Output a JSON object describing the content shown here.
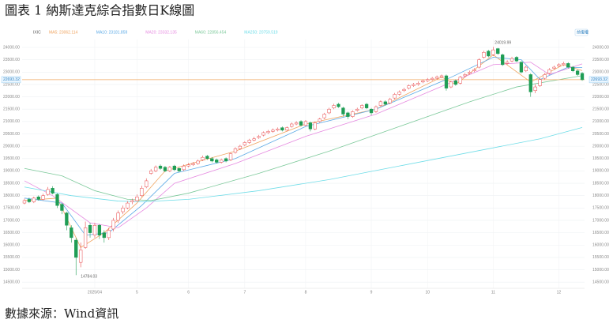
{
  "header": {
    "title": "圖表 1 納斯達克綜合指數日K線圖"
  },
  "footer": {
    "source": "數據來源：Wind資訊"
  },
  "chart_data": {
    "type": "candlestick",
    "symbol": "IXIC",
    "button_label": "前復權",
    "ylim": [
      14250,
      24320
    ],
    "yticks": [
      {
        "value": 14500,
        "label": "14500.00"
      },
      {
        "value": 15000,
        "label": "15000.00"
      },
      {
        "value": 15500,
        "label": "15500.00"
      },
      {
        "value": 16000,
        "label": "16000.00"
      },
      {
        "value": 16500,
        "label": "16500.00"
      },
      {
        "value": 17000,
        "label": "17000.00"
      },
      {
        "value": 17500,
        "label": "17500.00"
      },
      {
        "value": 18000,
        "label": "18000.00"
      },
      {
        "value": 18500,
        "label": "18500.00"
      },
      {
        "value": 19000,
        "label": "19000.00"
      },
      {
        "value": 19500,
        "label": "19500.00"
      },
      {
        "value": 20000,
        "label": "20000.00"
      },
      {
        "value": 20500,
        "label": "20500.00"
      },
      {
        "value": 21000,
        "label": "21000.00"
      },
      {
        "value": 21500,
        "label": "21500.00"
      },
      {
        "value": 22000,
        "label": "22000.00"
      },
      {
        "value": 22500,
        "label": "22500.00"
      },
      {
        "value": 23000,
        "label": "23000.00"
      },
      {
        "value": 23500,
        "label": "23500.00"
      },
      {
        "value": 24000,
        "label": "24000.00"
      }
    ],
    "xlim": [
      -0.5,
      119.5
    ],
    "xticks": [
      {
        "value": 15,
        "label": "2025/04"
      },
      {
        "value": 24,
        "label": "5"
      },
      {
        "value": 35,
        "label": "6"
      },
      {
        "value": 47,
        "label": "7"
      },
      {
        "value": 60,
        "label": "8"
      },
      {
        "value": 74,
        "label": "9"
      },
      {
        "value": 86,
        "label": "10"
      },
      {
        "value": 100,
        "label": "11"
      },
      {
        "value": 114,
        "label": "12"
      }
    ],
    "grid": true,
    "up_color": "#e8484a",
    "down_color": "#1f9d55",
    "last_price": {
      "value": 22693.32,
      "label": "22693.32"
    },
    "last_price_color": "#f0a860",
    "annotations": [
      {
        "text": "24019.99"
      },
      {
        "text": "14784.03"
      }
    ],
    "open": [
      17700,
      17850,
      17750,
      17950,
      17850,
      18050,
      18300,
      18050,
      17650,
      17300,
      16700,
      16200,
      15300,
      15900,
      16800,
      16400,
      16800,
      16500,
      16300,
      16650,
      17000,
      17350,
      17500,
      17750,
      17800,
      18000,
      18350,
      18900,
      19000,
      19200,
      19150,
      19000,
      19200,
      19100,
      19050,
      19200,
      19250,
      19300,
      19450,
      19600,
      19500,
      19450,
      19350,
      19500,
      19450,
      19750,
      19900,
      20050,
      20150,
      20250,
      20350,
      20450,
      20550,
      20600,
      20650,
      20750,
      20650,
      20800,
      20900,
      21000,
      20850,
      20950,
      20700,
      21000,
      21150,
      21350,
      21550,
      21700,
      21550,
      21350,
      21200,
      21450,
      21550,
      21700,
      21500,
      21400,
      21650,
      21800,
      21750,
      21950,
      22100,
      22250,
      22350,
      22450,
      22500,
      22600,
      22650,
      22700,
      22750,
      22800,
      22850,
      22400,
      22650,
      22550,
      22850,
      22950,
      23050,
      23200,
      23600,
      23850,
      23700,
      23950,
      23700,
      23350,
      23450,
      23600,
      23400,
      23050,
      22900,
      22250,
      22450,
      22750,
      22950,
      23150,
      23250,
      23300,
      23350,
      23200,
      23050,
      22950
    ],
    "high": [
      17880,
      17920,
      17960,
      18010,
      18080,
      18350,
      18380,
      18100,
      17700,
      17350,
      16800,
      16300,
      16100,
      16950,
      16900,
      16900,
      16850,
      16600,
      16700,
      17100,
      17400,
      17600,
      17780,
      17880,
      18050,
      18400,
      18700,
      19080,
      19220,
      19260,
      19200,
      19200,
      19250,
      19150,
      19260,
      19320,
      19360,
      19460,
      19620,
      19650,
      19560,
      19500,
      19500,
      19550,
      19750,
      19960,
      20060,
      20200,
      20300,
      20380,
      20460,
      20600,
      20660,
      20720,
      20760,
      20800,
      20800,
      20960,
      21020,
      21050,
      21060,
      21000,
      21000,
      21150,
      21350,
      21560,
      21720,
      21760,
      21600,
      21400,
      21450,
      21560,
      21700,
      21750,
      21550,
      21650,
      21860,
      21860,
      21960,
      22160,
      22260,
      22360,
      22500,
      22560,
      22620,
      22700,
      22760,
      22800,
      22860,
      22900,
      22900,
      22650,
      22700,
      22850,
      22960,
      23060,
      23160,
      23560,
      23860,
      23900,
      24019.99,
      23980,
      23750,
      23480,
      23620,
      23650,
      23450,
      23260,
      22950,
      22500,
      22760,
      22960,
      23160,
      23260,
      23360,
      23420,
      23400,
      23250,
      23100,
      23000
    ],
    "low": [
      17650,
      17700,
      17700,
      17800,
      17810,
      18000,
      18050,
      17500,
      17250,
      16600,
      16100,
      14784.03,
      15100,
      15850,
      16300,
      16300,
      16250,
      16100,
      16200,
      16550,
      16900,
      17250,
      17450,
      17650,
      17750,
      17950,
      18300,
      18850,
      18950,
      19050,
      18950,
      18950,
      19000,
      18950,
      19000,
      19150,
      19200,
      19250,
      19400,
      19450,
      19350,
      19300,
      19300,
      19350,
      19400,
      19700,
      19850,
      20000,
      20100,
      20200,
      20300,
      20400,
      20500,
      20550,
      20600,
      20600,
      20600,
      20750,
      20850,
      20800,
      20800,
      20600,
      20650,
      20950,
      21100,
      21300,
      21500,
      21550,
      21200,
      21100,
      21150,
      21400,
      21500,
      21500,
      21250,
      21350,
      21600,
      21650,
      21700,
      21900,
      22050,
      22200,
      22300,
      22400,
      22450,
      22550,
      22600,
      22650,
      22700,
      22750,
      22250,
      22350,
      22450,
      22500,
      22800,
      22900,
      23000,
      23150,
      23550,
      23600,
      23650,
      23700,
      23250,
      23300,
      23400,
      23400,
      22950,
      23000,
      22000,
      22150,
      22400,
      22700,
      22900,
      23100,
      23200,
      23250,
      23150,
      23000,
      22850,
      22650
    ],
    "close": [
      17800,
      17750,
      17900,
      17850,
      18000,
      18250,
      18100,
      17600,
      17400,
      16800,
      16300,
      15500,
      15800,
      16700,
      16500,
      16800,
      16400,
      16300,
      16600,
      17000,
      17300,
      17500,
      17700,
      17800,
      17950,
      18300,
      18600,
      19000,
      19150,
      19100,
      19000,
      19150,
      19050,
      19000,
      19200,
      19250,
      19300,
      19400,
      19550,
      19500,
      19400,
      19350,
      19450,
      19400,
      19700,
      19900,
      20000,
      20150,
      20250,
      20300,
      20400,
      20550,
      20600,
      20650,
      20700,
      20650,
      20750,
      20900,
      20950,
      20850,
      21000,
      20700,
      20950,
      21100,
      21300,
      21500,
      21650,
      21600,
      21300,
      21200,
      21400,
      21500,
      21650,
      21550,
      21350,
      21600,
      21800,
      21700,
      21900,
      22100,
      22200,
      22300,
      22450,
      22500,
      22550,
      22650,
      22700,
      22750,
      22800,
      22850,
      22350,
      22600,
      22500,
      22800,
      22900,
      23000,
      23100,
      23500,
      23800,
      23650,
      23900,
      23750,
      23300,
      23400,
      23550,
      23450,
      23000,
      23200,
      22200,
      22400,
      22700,
      22900,
      23100,
      23200,
      23300,
      23350,
      23200,
      23050,
      22900,
      22693.32
    ],
    "series": [
      {
        "name": "MA5: 23062.114",
        "color": "#f0a35e",
        "x": [
          0,
          7,
          12,
          17,
          24,
          30,
          45,
          60,
          75,
          89,
          92,
          100,
          108,
          115,
          119
        ],
        "values": [
          17800,
          17900,
          15900,
          16500,
          17700,
          19000,
          19800,
          20900,
          21500,
          22800,
          22500,
          23700,
          22600,
          23300,
          23062.114
        ]
      },
      {
        "name": "MA10: 23181.859",
        "color": "#5aa9e6",
        "x": [
          0,
          8,
          13,
          18,
          25,
          32,
          45,
          60,
          75,
          90,
          100,
          106,
          110,
          116,
          119
        ],
        "values": [
          17900,
          17700,
          16400,
          16500,
          17600,
          18900,
          19500,
          20800,
          21500,
          22700,
          23600,
          23500,
          22700,
          23200,
          23181.859
        ]
      },
      {
        "name": "MA20: 23332.135",
        "color": "#e68ae0",
        "x": [
          0,
          6,
          14,
          20,
          26,
          32,
          45,
          60,
          75,
          90,
          100,
          108,
          112,
          119
        ],
        "values": [
          18600,
          18000,
          16900,
          16700,
          17500,
          18500,
          19300,
          20400,
          21300,
          22500,
          23300,
          23400,
          22900,
          23332.135
        ]
      },
      {
        "name": "MA60: 22856.454",
        "color": "#7cc99a",
        "x": [
          0,
          8,
          15,
          22,
          27,
          35,
          50,
          65,
          80,
          95,
          105,
          119
        ],
        "values": [
          19100,
          18800,
          18200,
          17850,
          17800,
          18100,
          18900,
          19800,
          20800,
          21800,
          22400,
          22856.454
        ]
      },
      {
        "name": "MA250: 20759.519",
        "color": "#6fdde8",
        "x": [
          0,
          10,
          20,
          25,
          35,
          50,
          65,
          80,
          95,
          110,
          119
        ],
        "values": [
          18350,
          18000,
          17780,
          17750,
          17850,
          18200,
          18650,
          19200,
          19750,
          20300,
          20759.519
        ]
      }
    ]
  }
}
